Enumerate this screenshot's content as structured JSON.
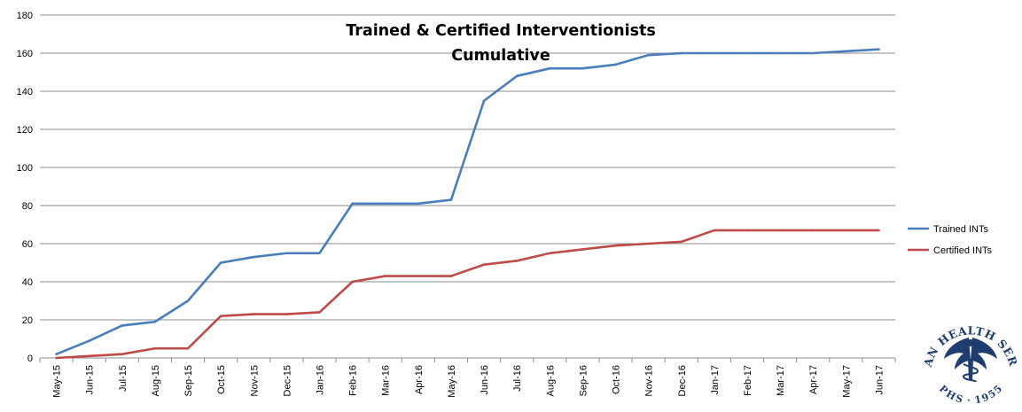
{
  "chart_data": {
    "type": "line",
    "title": "Trained & Certified Interventionists",
    "subtitle": "Cumulative",
    "xlabel": "",
    "ylabel": "",
    "ylim": [
      0,
      180
    ],
    "yticks": [
      "0",
      "20",
      "40",
      "60",
      "80",
      "100",
      "120",
      "140",
      "160",
      "180"
    ],
    "grid": true,
    "legend_position": "right",
    "categories": [
      "May-15",
      "Jun-15",
      "Jul-15",
      "Aug-15",
      "Sep-15",
      "Oct-15",
      "Nov-15",
      "Dec-15",
      "Jan-16",
      "Feb-16",
      "Mar-16",
      "Apr-16",
      "May-16",
      "Jun-16",
      "Jul-16",
      "Aug-16",
      "Sep-16",
      "Oct-16",
      "Nov-16",
      "Dec-16",
      "Jan-17",
      "Feb-17",
      "Mar-17",
      "Apr-17",
      "May-17",
      "Jun-17"
    ],
    "series": [
      {
        "name": "Trained INTs",
        "color": "#4a7ebb",
        "values": [
          2,
          9,
          17,
          19,
          30,
          50,
          53,
          55,
          55,
          81,
          81,
          81,
          83,
          135,
          148,
          152,
          152,
          154,
          159,
          160,
          160,
          160,
          160,
          160,
          161,
          162
        ]
      },
      {
        "name": "Certified INTs",
        "color": "#be4b48",
        "values": [
          0,
          1,
          2,
          5,
          5,
          22,
          23,
          23,
          24,
          40,
          43,
          43,
          43,
          49,
          51,
          55,
          57,
          59,
          60,
          61,
          67,
          67,
          67,
          67,
          67,
          67
        ]
      }
    ]
  },
  "logo": {
    "name": "Indian Health Service",
    "top_text": "INDIAN HEALTH SERVICE",
    "bottom_text": "PHS · 1955",
    "color": "#1f3d6e"
  }
}
